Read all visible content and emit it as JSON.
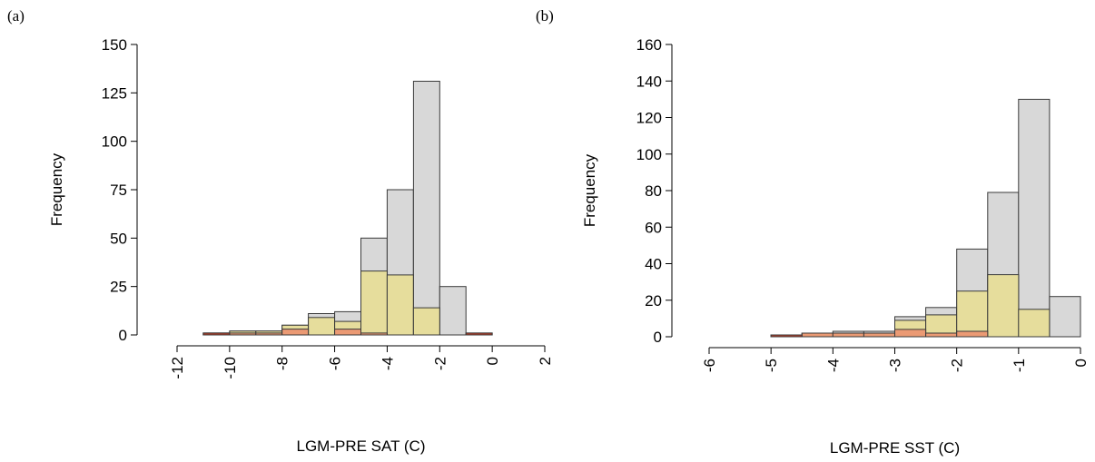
{
  "panels": [
    {
      "label": "(a)"
    },
    {
      "label": "(b)"
    }
  ],
  "colors": {
    "gray": "#d8d8d8",
    "yellow": "#e6dd9c",
    "orange": "#eb9a74",
    "red": "#b83a24"
  },
  "chart_data": [
    {
      "type": "bar",
      "title": "",
      "xlabel": "LGM-PRE SAT (C)",
      "ylabel": "Frequency",
      "xlim": [
        -12,
        2
      ],
      "ylim": [
        0,
        150
      ],
      "xticks": [
        -12,
        -10,
        -8,
        -6,
        -4,
        -2,
        0,
        2
      ],
      "xtick_labels": [
        "-12",
        "-10",
        "-8",
        "-6",
        "-4",
        "-2",
        "0",
        "2"
      ],
      "yticks": [
        0,
        25,
        50,
        75,
        100,
        125,
        150
      ],
      "ytick_labels": [
        "0",
        "25",
        "50",
        "75",
        "100",
        "125",
        "150"
      ],
      "bin_edges": [
        -11,
        -10,
        -9,
        -8,
        -7,
        -6,
        -5,
        -4,
        -3,
        -2,
        -1,
        0
      ],
      "series": [
        {
          "color": "gray",
          "values": [
            1,
            2,
            2,
            5,
            11,
            12,
            50,
            75,
            131,
            25,
            1
          ]
        },
        {
          "color": "yellow",
          "values": [
            1,
            2,
            2,
            5,
            9,
            7,
            33,
            31,
            14,
            0,
            0
          ]
        },
        {
          "color": "orange",
          "values": [
            0,
            1,
            1,
            3,
            0,
            3,
            1,
            0,
            0,
            0,
            0
          ]
        },
        {
          "color": "red",
          "values": [
            1,
            0,
            0,
            0,
            0,
            0,
            0,
            0,
            0,
            0,
            1
          ]
        }
      ]
    },
    {
      "type": "bar",
      "title": "",
      "xlabel": "LGM-PRE SST (C)",
      "ylabel": "Frequency",
      "xlim": [
        -6,
        0
      ],
      "ylim": [
        0,
        160
      ],
      "xticks": [
        -6,
        -5,
        -4,
        -3,
        -2,
        -1,
        0
      ],
      "xtick_labels": [
        "-6",
        "-5",
        "-4",
        "-3",
        "-2",
        "-1",
        "0"
      ],
      "yticks": [
        0,
        20,
        40,
        60,
        80,
        100,
        120,
        140,
        160
      ],
      "ytick_labels": [
        "0",
        "20",
        "40",
        "60",
        "80",
        "100",
        "120",
        "140",
        "160"
      ],
      "bin_edges": [
        -5,
        -4.5,
        -4,
        -3.5,
        -3,
        -2.5,
        -2,
        -1.5,
        -1,
        -0.5,
        0
      ],
      "series": [
        {
          "color": "gray",
          "values": [
            1,
            2,
            3,
            3,
            11,
            16,
            48,
            79,
            130,
            22
          ]
        },
        {
          "color": "yellow",
          "values": [
            1,
            2,
            2,
            2,
            9,
            12,
            25,
            34,
            15,
            0
          ]
        },
        {
          "color": "orange",
          "values": [
            1,
            2,
            2,
            2,
            4,
            2,
            3,
            0,
            0,
            0
          ]
        },
        {
          "color": "red",
          "values": [
            1,
            0,
            0,
            0,
            0,
            0,
            0,
            0,
            0,
            0
          ]
        }
      ]
    }
  ]
}
